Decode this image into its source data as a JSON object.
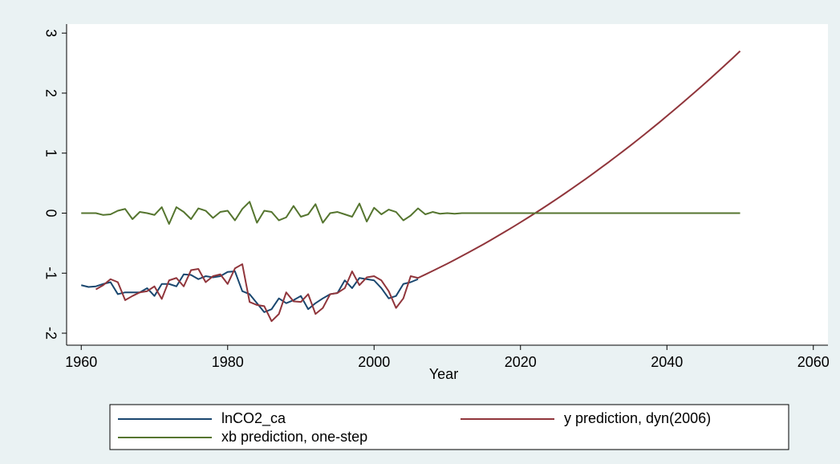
{
  "chart_data": {
    "type": "line",
    "xlabel": "Year",
    "xlim": [
      1958,
      2062
    ],
    "ylim": [
      -2.2,
      3.15
    ],
    "xticks": [
      1960,
      1980,
      2000,
      2020,
      2040,
      2060
    ],
    "yticks": [
      -2,
      -1,
      0,
      1,
      2,
      3
    ],
    "grid": false,
    "legend": "bottom",
    "series": [
      {
        "name": "lnCO2_ca",
        "color": "#1a476f",
        "x": [
          1960,
          1961,
          1962,
          1963,
          1964,
          1965,
          1966,
          1967,
          1968,
          1969,
          1970,
          1971,
          1972,
          1973,
          1974,
          1975,
          1976,
          1977,
          1978,
          1979,
          1980,
          1981,
          1982,
          1983,
          1984,
          1985,
          1986,
          1987,
          1988,
          1989,
          1990,
          1991,
          1992,
          1993,
          1994,
          1995,
          1996,
          1997,
          1998,
          1999,
          2000,
          2001,
          2002,
          2003,
          2004,
          2005,
          2006
        ],
        "values": [
          -1.2,
          -1.23,
          -1.22,
          -1.18,
          -1.15,
          -1.35,
          -1.32,
          -1.32,
          -1.32,
          -1.25,
          -1.38,
          -1.18,
          -1.18,
          -1.22,
          -1.02,
          -1.03,
          -1.1,
          -1.05,
          -1.07,
          -1.05,
          -0.98,
          -0.97,
          -1.3,
          -1.35,
          -1.5,
          -1.65,
          -1.6,
          -1.42,
          -1.5,
          -1.45,
          -1.38,
          -1.6,
          -1.5,
          -1.42,
          -1.35,
          -1.33,
          -1.12,
          -1.25,
          -1.08,
          -1.1,
          -1.12,
          -1.25,
          -1.42,
          -1.38,
          -1.18,
          -1.15,
          -1.1
        ]
      },
      {
        "name": "y prediction, dyn(2006)",
        "color": "#90353b",
        "x": [
          1962,
          1963,
          1964,
          1965,
          1966,
          1967,
          1968,
          1969,
          1970,
          1971,
          1972,
          1973,
          1974,
          1975,
          1976,
          1977,
          1978,
          1979,
          1980,
          1981,
          1982,
          1983,
          1984,
          1985,
          1986,
          1987,
          1988,
          1989,
          1990,
          1991,
          1992,
          1993,
          1994,
          1995,
          1996,
          1997,
          1998,
          1999,
          2000,
          2001,
          2002,
          2003,
          2004,
          2005,
          2006,
          2007,
          2008,
          2009,
          2010,
          2011,
          2012,
          2013,
          2014,
          2015,
          2016,
          2017,
          2018,
          2019,
          2020,
          2021,
          2022,
          2023,
          2024,
          2025,
          2026,
          2027,
          2028,
          2029,
          2030,
          2031,
          2032,
          2033,
          2034,
          2035,
          2036,
          2037,
          2038,
          2039,
          2040,
          2041,
          2042,
          2043,
          2044,
          2045,
          2046,
          2047,
          2048,
          2049,
          2050
        ],
        "values": [
          -1.27,
          -1.2,
          -1.1,
          -1.15,
          -1.45,
          -1.38,
          -1.32,
          -1.3,
          -1.22,
          -1.43,
          -1.12,
          -1.08,
          -1.22,
          -0.95,
          -0.93,
          -1.15,
          -1.05,
          -1.02,
          -1.18,
          -0.92,
          -0.85,
          -1.48,
          -1.53,
          -1.55,
          -1.8,
          -1.68,
          -1.32,
          -1.47,
          -1.48,
          -1.35,
          -1.68,
          -1.58,
          -1.35,
          -1.33,
          -1.25,
          -0.97,
          -1.2,
          -1.07,
          -1.05,
          -1.12,
          -1.3,
          -1.58,
          -1.42,
          -1.05,
          -1.08,
          -1.022,
          -0.963,
          -0.903,
          -0.842,
          -0.779,
          -0.714,
          -0.649,
          -0.582,
          -0.514,
          -0.444,
          -0.373,
          -0.301,
          -0.228,
          -0.153,
          -0.077,
          0,
          0.079,
          0.159,
          0.24,
          0.323,
          0.407,
          0.492,
          0.578,
          0.667,
          0.756,
          0.846,
          0.938,
          1.031,
          1.125,
          1.221,
          1.318,
          1.417,
          1.516,
          1.618,
          1.72,
          1.824,
          1.929,
          2.035,
          2.142,
          2.251,
          2.361,
          2.473,
          2.585,
          2.7
        ]
      },
      {
        "name": "xb prediction, one-step",
        "color": "#55752f",
        "x": [
          1960,
          1961,
          1962,
          1963,
          1964,
          1965,
          1966,
          1967,
          1968,
          1969,
          1970,
          1971,
          1972,
          1973,
          1974,
          1975,
          1976,
          1977,
          1978,
          1979,
          1980,
          1981,
          1982,
          1983,
          1984,
          1985,
          1986,
          1987,
          1988,
          1989,
          1990,
          1991,
          1992,
          1993,
          1994,
          1995,
          1996,
          1997,
          1998,
          1999,
          2000,
          2001,
          2002,
          2003,
          2004,
          2005,
          2006,
          2007,
          2008,
          2009,
          2010,
          2011,
          2012,
          2050
        ],
        "values": [
          0,
          0,
          0,
          -0.03,
          -0.02,
          0.04,
          0.07,
          -0.1,
          0.02,
          0,
          -0.03,
          0.1,
          -0.18,
          0.1,
          0.02,
          -0.1,
          0.08,
          0.04,
          -0.08,
          0.02,
          0.04,
          -0.12,
          0.07,
          0.19,
          -0.16,
          0.04,
          0.02,
          -0.12,
          -0.07,
          0.12,
          -0.06,
          -0.02,
          0.15,
          -0.16,
          0,
          0.02,
          -0.02,
          -0.06,
          0.16,
          -0.14,
          0.09,
          -0.02,
          0.06,
          0.02,
          -0.12,
          -0.04,
          0.08,
          -0.02,
          0.02,
          -0.01,
          0,
          -0.01,
          0,
          0
        ]
      }
    ]
  }
}
